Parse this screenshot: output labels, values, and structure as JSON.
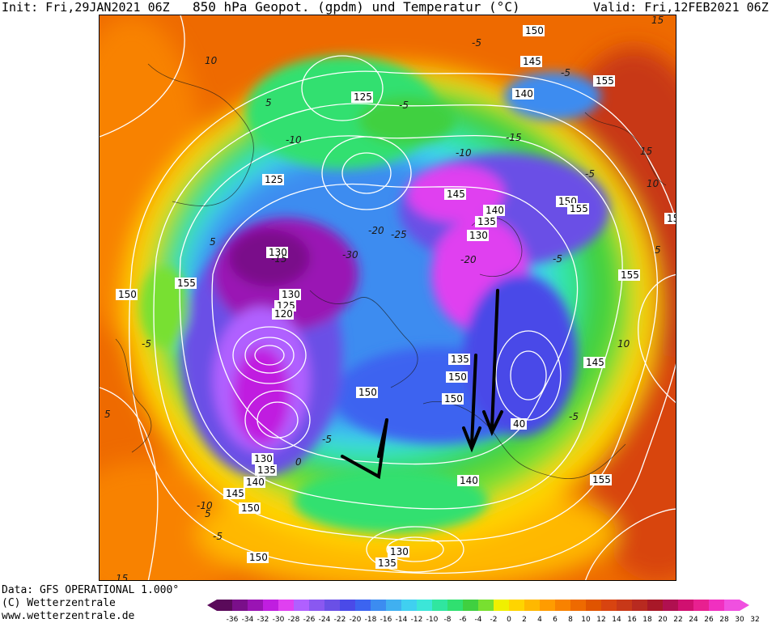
{
  "header": {
    "init": "Init: Fri,29JAN2021 06Z",
    "title": "850 hPa Geopot. (gpdm) und Temperatur (°C)",
    "valid": "Valid: Fri,12FEB2021 06Z"
  },
  "footer": {
    "line1": "Data: GFS OPERATIONAL 1.000°",
    "line2": "(C) Wetterzentrale",
    "line3": "www.wetterzentrale.de"
  },
  "legend": {
    "ticks": [
      "-36",
      "-34",
      "-32",
      "-30",
      "-28",
      "-26",
      "-24",
      "-22",
      "-20",
      "-18",
      "-16",
      "-14",
      "-12",
      "-10",
      "-8",
      "-6",
      "-4",
      "-2",
      "0",
      "2",
      "4",
      "6",
      "8",
      "10",
      "12",
      "14",
      "16",
      "18",
      "20",
      "22",
      "24",
      "26",
      "28",
      "30",
      "32"
    ],
    "colors": [
      "#5a0a5a",
      "#7a0f8a",
      "#9a14b4",
      "#c01ee0",
      "#e040f0",
      "#b060ff",
      "#8a58f0",
      "#6a50e6",
      "#4a4ae8",
      "#3c64f0",
      "#3c8cf0",
      "#40b0f0",
      "#40d0f0",
      "#3ce6d8",
      "#30e6a0",
      "#30e070",
      "#40d040",
      "#78e030",
      "#f0f000",
      "#ffd400",
      "#ffb800",
      "#ff9c00",
      "#f88200",
      "#ee6a00",
      "#e05400",
      "#d84410",
      "#c83818",
      "#b82a20",
      "#a81828",
      "#b01050",
      "#d01070",
      "#e82090",
      "#f030c0",
      "#f050e0"
    ]
  },
  "map_labels": {
    "geopotential": [
      "150",
      "145",
      "155",
      "140",
      "125",
      "125",
      "145",
      "140",
      "150",
      "155",
      "135",
      "130",
      "130",
      "155",
      "150",
      "130",
      "125",
      "120",
      "135",
      "150",
      "150",
      "150",
      "145",
      "40",
      "130",
      "135",
      "140",
      "145",
      "150",
      "140",
      "155",
      "130",
      "135",
      "150",
      "15",
      "155"
    ],
    "temperature": [
      "15",
      "10",
      "5",
      "-5",
      "-10",
      "-5",
      "-10",
      "-15",
      "-20",
      "-25",
      "-30",
      "-20",
      "-5",
      "5",
      "-5",
      "-15",
      "-5",
      "0",
      "5",
      "-5",
      "-5",
      "-10",
      "15",
      "10",
      "5",
      "10",
      "15",
      "-5",
      "5",
      "-5"
    ]
  },
  "colors": {
    "deep_cold": "#7a0f8a",
    "cold": "#4a4ae8",
    "cool": "#30e070",
    "neutral": "#f0f000",
    "warm": "#f88200",
    "hot": "#b82a20",
    "contour": "#ffffff",
    "annotation": "#000000"
  }
}
